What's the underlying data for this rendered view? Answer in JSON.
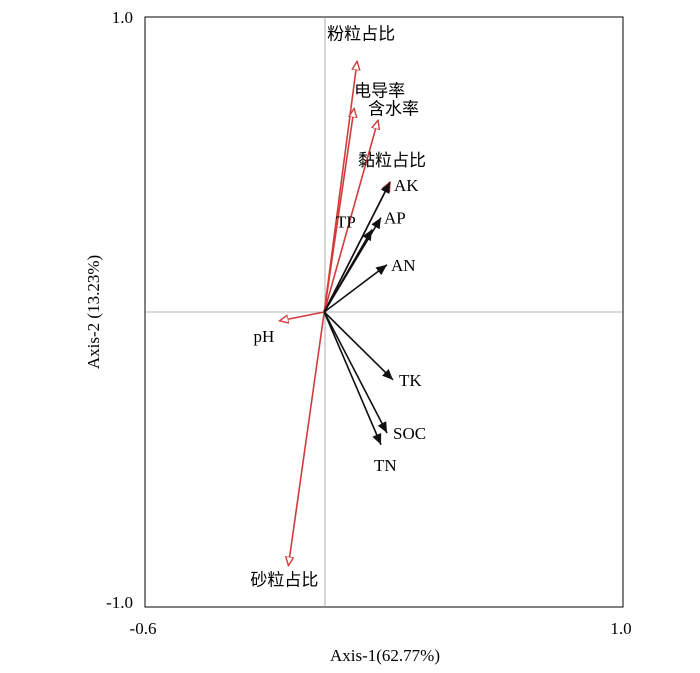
{
  "chart_data": {
    "type": "scatter",
    "subtype": "RDA biplot",
    "xlabel": "Axis-1(62.77%)",
    "ylabel": "Axis-2 (13.23%)",
    "xlim": [
      -0.6,
      1.0
    ],
    "ylim": [
      -1.0,
      1.0
    ],
    "x_tick_labels": [
      "-0.6",
      "1.0"
    ],
    "y_tick_labels": [
      "1.0",
      "-1.0"
    ],
    "zero_lines": true,
    "environment_color": "#d33b3b",
    "response_color": "#111111",
    "environmental_variables": [
      {
        "name": "粉粒占比",
        "x": 0.11,
        "y": 0.85
      },
      {
        "name": "电导率",
        "x": 0.1,
        "y": 0.69
      },
      {
        "name": "含水率",
        "x": 0.18,
        "y": 0.65
      },
      {
        "name": "黏粒占比",
        "x": 0.22,
        "y": 0.44
      },
      {
        "name": "pH",
        "x": -0.15,
        "y": -0.03
      },
      {
        "name": "砂粒占比",
        "x": -0.12,
        "y": -0.86
      }
    ],
    "response_variables": [
      {
        "name": "AK",
        "x": 0.22,
        "y": 0.44
      },
      {
        "name": "TP",
        "x": 0.16,
        "y": 0.28
      },
      {
        "name": "AP",
        "x": 0.19,
        "y": 0.32
      },
      {
        "name": "AN",
        "x": 0.21,
        "y": 0.16
      },
      {
        "name": "TK",
        "x": 0.23,
        "y": -0.23
      },
      {
        "name": "SOC",
        "x": 0.21,
        "y": -0.41
      },
      {
        "name": "TN",
        "x": 0.19,
        "y": -0.45
      }
    ]
  }
}
